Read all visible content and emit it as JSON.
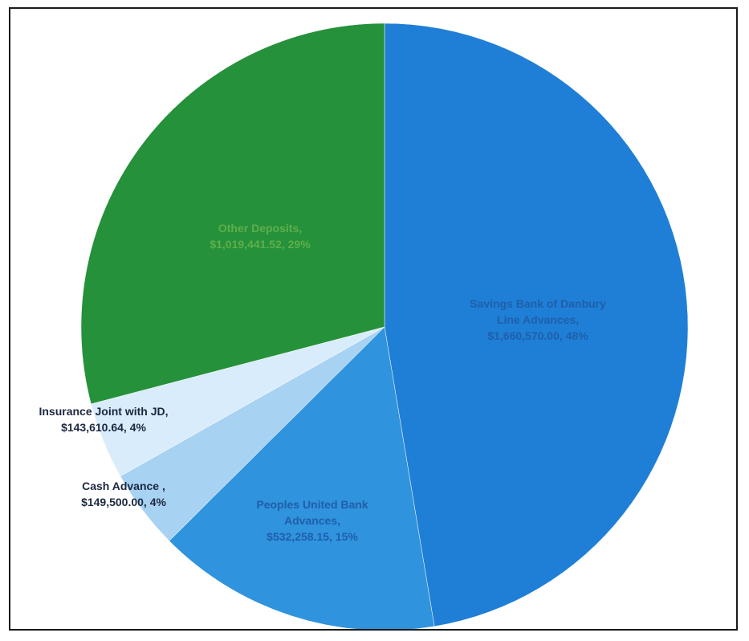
{
  "chart_data": {
    "type": "pie",
    "title": "",
    "slices": [
      {
        "name": "Savings Bank of Danbury Line Advances,",
        "value_text": "$1,660,570.00, 48%",
        "value": 1660570.0,
        "percent": 48,
        "color": "#1f7fd6",
        "label_color": "#1f5faa"
      },
      {
        "name": "Peoples United Bank Advances,",
        "value_text": "$532,258.15, 15%",
        "value": 532258.15,
        "percent": 15,
        "color": "#3093dd",
        "label_color": "#1f5faa"
      },
      {
        "name": "Cash Advance ,",
        "value_text": "$149,500.00, 4%",
        "value": 149500.0,
        "percent": 4,
        "color": "#a8d2f2",
        "label_color": "#1c2740"
      },
      {
        "name": "Insurance Joint with JD,",
        "value_text": "$143,610.64, 4%",
        "value": 143610.64,
        "percent": 4,
        "color": "#d8ecfb",
        "label_color": "#1c2740"
      },
      {
        "name": "Other Deposits,",
        "value_text": "$1,019,441.52, 29%",
        "value": 1019441.52,
        "percent": 29,
        "color": "#25913a",
        "label_color": "#5fae4c"
      }
    ]
  }
}
